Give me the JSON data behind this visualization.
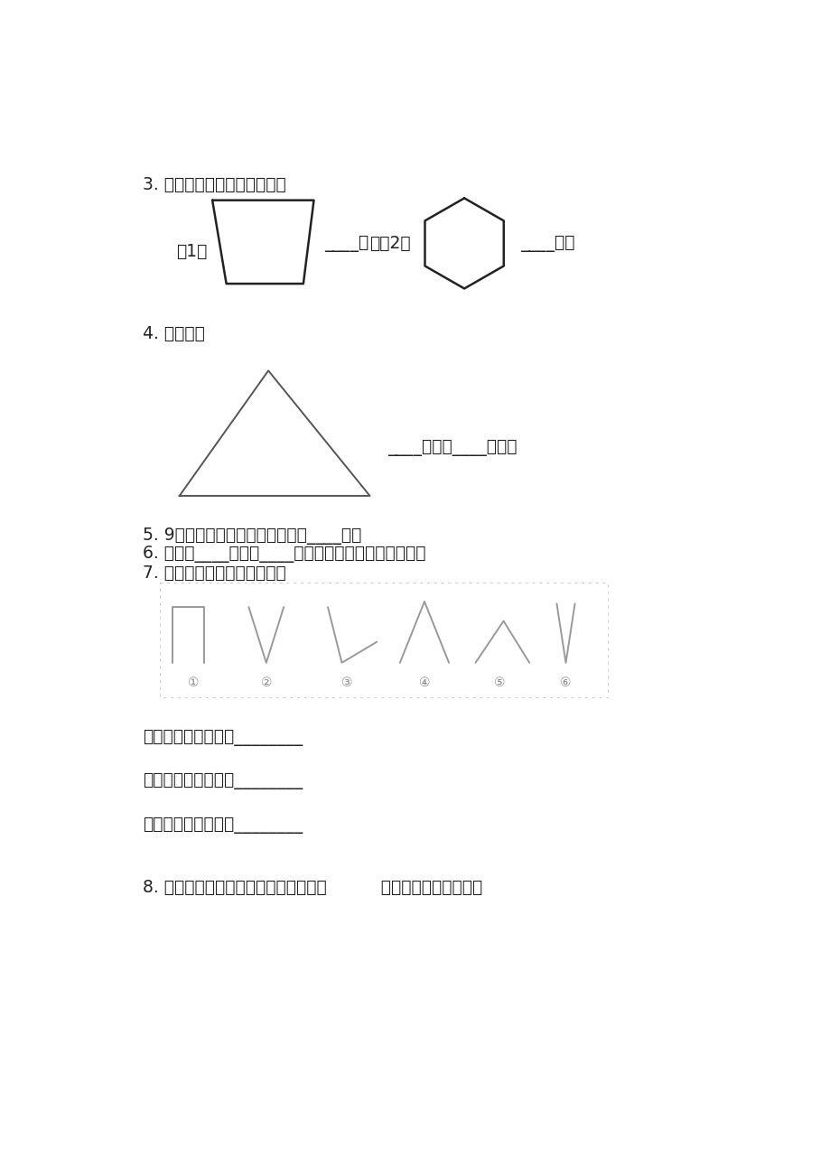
{
  "bg_color": "#ffffff",
  "text_color": "#222222",
  "line_color": "#222222",
  "light_line_color": "#999999",
  "q3_text": "3. 下面的图形中各有几个角？",
  "q3_label1": "（1）",
  "q3_sep": "；（2）",
  "q3_blank1": "____个",
  "q3_blank2": "____个。",
  "q4_text": "4. 数一数。",
  "q4_blank": "____钝角，____锐角。",
  "q5_text": "5. 9时整，分针和时针形成的角是____角。",
  "q6_text": "6. 锤面上____时整和____时整，分针和时针形成直角。",
  "q7_text": "7. 按要求分一分。（填序号）",
  "q7_labels": [
    "①",
    "②",
    "③",
    "④",
    "⑤",
    "⑥"
  ],
  "q7a_text": "上图中是锐角的有：________",
  "q7b_text": "上图中是直角的有：________",
  "q7c_text": "上图中是钝角的有：________",
  "q8_text": "8. 拿一张长方形纸，先上下对折，再（          ）对折可以得到直角。"
}
